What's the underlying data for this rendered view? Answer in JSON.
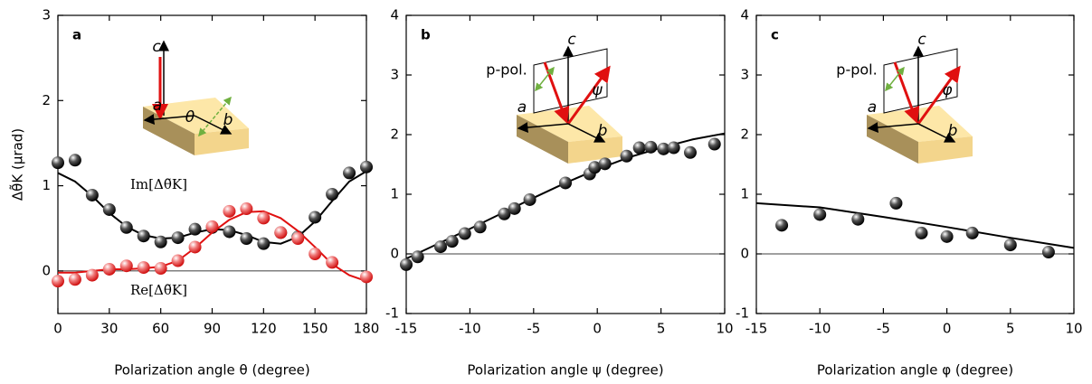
{
  "chart_data": [
    {
      "type": "scatter",
      "panel_label": "a",
      "xlabel": "Polarization angle θ (degree)",
      "ylabel": "Δθ̃K (μrad)",
      "xlim": [
        0,
        180
      ],
      "xticks": [
        0,
        30,
        60,
        90,
        120,
        150,
        180
      ],
      "ylim": [
        -0.5,
        3
      ],
      "yticks": [
        0,
        1,
        2,
        3
      ],
      "reference_line": 0,
      "series": [
        {
          "name": "Im[Δθ̃K]",
          "color": "#000000",
          "x": [
            0,
            10,
            20,
            30,
            40,
            50,
            60,
            70,
            80,
            90,
            100,
            110,
            120,
            130,
            140,
            150,
            160,
            170,
            180
          ],
          "values": [
            1.27,
            1.3,
            0.89,
            0.72,
            0.51,
            0.41,
            0.34,
            0.39,
            0.49,
            0.51,
            0.46,
            0.38,
            0.32,
            0.45,
            0.4,
            0.63,
            0.9,
            1.15,
            1.22
          ],
          "fit": {
            "x": [
              0,
              10,
              20,
              30,
              40,
              50,
              60,
              70,
              80,
              90,
              100,
              110,
              120,
              130,
              140,
              150,
              160,
              170,
              180
            ],
            "values": [
              1.15,
              1.05,
              0.88,
              0.68,
              0.52,
              0.42,
              0.38,
              0.39,
              0.45,
              0.49,
              0.48,
              0.42,
              0.34,
              0.32,
              0.4,
              0.58,
              0.82,
              1.05,
              1.17
            ]
          }
        },
        {
          "name": "Re[Δθ̃K]",
          "color": "#e01010",
          "x": [
            0,
            10,
            20,
            30,
            40,
            50,
            60,
            70,
            80,
            90,
            100,
            110,
            120,
            130,
            140,
            150,
            160,
            180
          ],
          "values": [
            -0.12,
            -0.1,
            -0.05,
            0.02,
            0.06,
            0.04,
            0.03,
            0.12,
            0.28,
            0.52,
            0.7,
            0.73,
            0.62,
            0.45,
            0.38,
            0.2,
            0.1,
            -0.07
          ],
          "fit": {
            "x": [
              0,
              10,
              20,
              30,
              40,
              50,
              60,
              70,
              80,
              90,
              100,
              110,
              120,
              130,
              140,
              150,
              160,
              170,
              180
            ],
            "values": [
              -0.02,
              -0.02,
              0,
              0.02,
              0.02,
              0.03,
              0.05,
              0.12,
              0.27,
              0.45,
              0.6,
              0.69,
              0.7,
              0.62,
              0.47,
              0.28,
              0.08,
              -0.05,
              -0.12
            ]
          }
        }
      ],
      "annotations": [
        "a",
        "b",
        "c",
        "θ"
      ]
    },
    {
      "type": "scatter",
      "panel_label": "b",
      "xlabel": "Polarization angle ψ (degree)",
      "xlim": [
        -15,
        10
      ],
      "xticks": [
        -15,
        -10,
        -5,
        0,
        5,
        10
      ],
      "ylim": [
        -1,
        4
      ],
      "yticks": [
        -1,
        0,
        1,
        2,
        3,
        4
      ],
      "reference_line": 0,
      "series": [
        {
          "color": "#000000",
          "x": [
            -15,
            -14.1,
            -12.3,
            -11.4,
            -10.4,
            -9.2,
            -7.3,
            -6.5,
            -5.3,
            -2.5,
            -0.6,
            -0.2,
            0.6,
            2.3,
            3.3,
            4.2,
            5.2,
            6,
            7.3,
            9.2
          ],
          "values": [
            -0.18,
            -0.05,
            0.12,
            0.21,
            0.34,
            0.45,
            0.67,
            0.76,
            0.91,
            1.19,
            1.34,
            1.45,
            1.51,
            1.64,
            1.78,
            1.79,
            1.76,
            1.78,
            1.7,
            1.84
          ],
          "fit": {
            "x": [
              -15,
              -12.5,
              -10,
              -7.5,
              -5,
              -2.5,
              0,
              2.5,
              5,
              7.5,
              10
            ],
            "values": [
              -0.08,
              0.17,
              0.42,
              0.68,
              0.94,
              1.19,
              1.42,
              1.62,
              1.78,
              1.92,
              2.02
            ]
          }
        }
      ],
      "annotations": [
        "p-pol.",
        "a",
        "b",
        "c",
        "ψ"
      ]
    },
    {
      "type": "scatter",
      "panel_label": "c",
      "xlabel": "Polarization angle φ (degree)",
      "xlim": [
        -15,
        10
      ],
      "xticks": [
        -15,
        -10,
        -5,
        0,
        5,
        10
      ],
      "ylim": [
        -1,
        4
      ],
      "yticks": [
        -1,
        0,
        1,
        2,
        3,
        4
      ],
      "reference_line": 0,
      "series": [
        {
          "color": "#000000",
          "x": [
            -13,
            -10,
            -7,
            -4,
            -2,
            0,
            2,
            5,
            8
          ],
          "values": [
            0.48,
            0.66,
            0.58,
            0.85,
            0.35,
            0.29,
            0.35,
            0.15,
            0.03
          ],
          "fit": {
            "x": [
              -15,
              -10,
              -5,
              0,
              5,
              10
            ],
            "values": [
              0.85,
              0.78,
              0.62,
              0.45,
              0.27,
              0.1
            ]
          }
        }
      ],
      "annotations": [
        "p-pol.",
        "a",
        "b",
        "c",
        "φ"
      ]
    }
  ]
}
